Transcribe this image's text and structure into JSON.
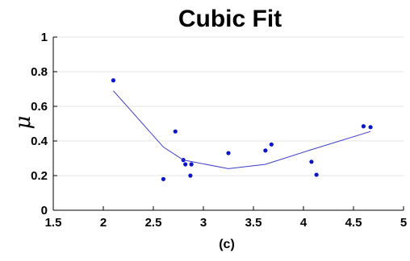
{
  "chart_data": {
    "type": "scatter",
    "title": "Cubic Fit",
    "xlabel": "(c)",
    "ylabel": "μ",
    "xlim": [
      1.5,
      5
    ],
    "ylim": [
      0,
      1
    ],
    "xticks": [
      1.5,
      2,
      2.5,
      3,
      3.5,
      4,
      4.5,
      5
    ],
    "xtick_labels": [
      "1.5",
      "2",
      "2.5",
      "3",
      "3.5",
      "4",
      "4.5",
      "5"
    ],
    "yticks": [
      0,
      0.2,
      0.4,
      0.6,
      0.8,
      1
    ],
    "ytick_labels": [
      "0",
      "0.2",
      "0.4",
      "0.6",
      "0.8",
      "1"
    ],
    "grid": true,
    "colors": {
      "points": "#0a14c8",
      "fit": "#3c3ccc",
      "grid": "#e6e6e6",
      "axis": "#000000"
    },
    "series": [
      {
        "type": "scatter",
        "x": [
          2.1,
          2.6,
          2.72,
          2.8,
          2.82,
          2.87,
          2.88,
          3.25,
          3.62,
          3.68,
          4.08,
          4.13,
          4.6,
          4.67
        ],
        "y": [
          0.75,
          0.18,
          0.455,
          0.29,
          0.265,
          0.2,
          0.265,
          0.33,
          0.345,
          0.38,
          0.28,
          0.205,
          0.485,
          0.48
        ]
      },
      {
        "type": "line",
        "x": [
          2.1,
          2.6,
          2.8,
          3.25,
          3.62,
          4.08,
          4.67
        ],
        "y": [
          0.69,
          0.365,
          0.29,
          0.24,
          0.265,
          0.35,
          0.455
        ]
      }
    ]
  }
}
